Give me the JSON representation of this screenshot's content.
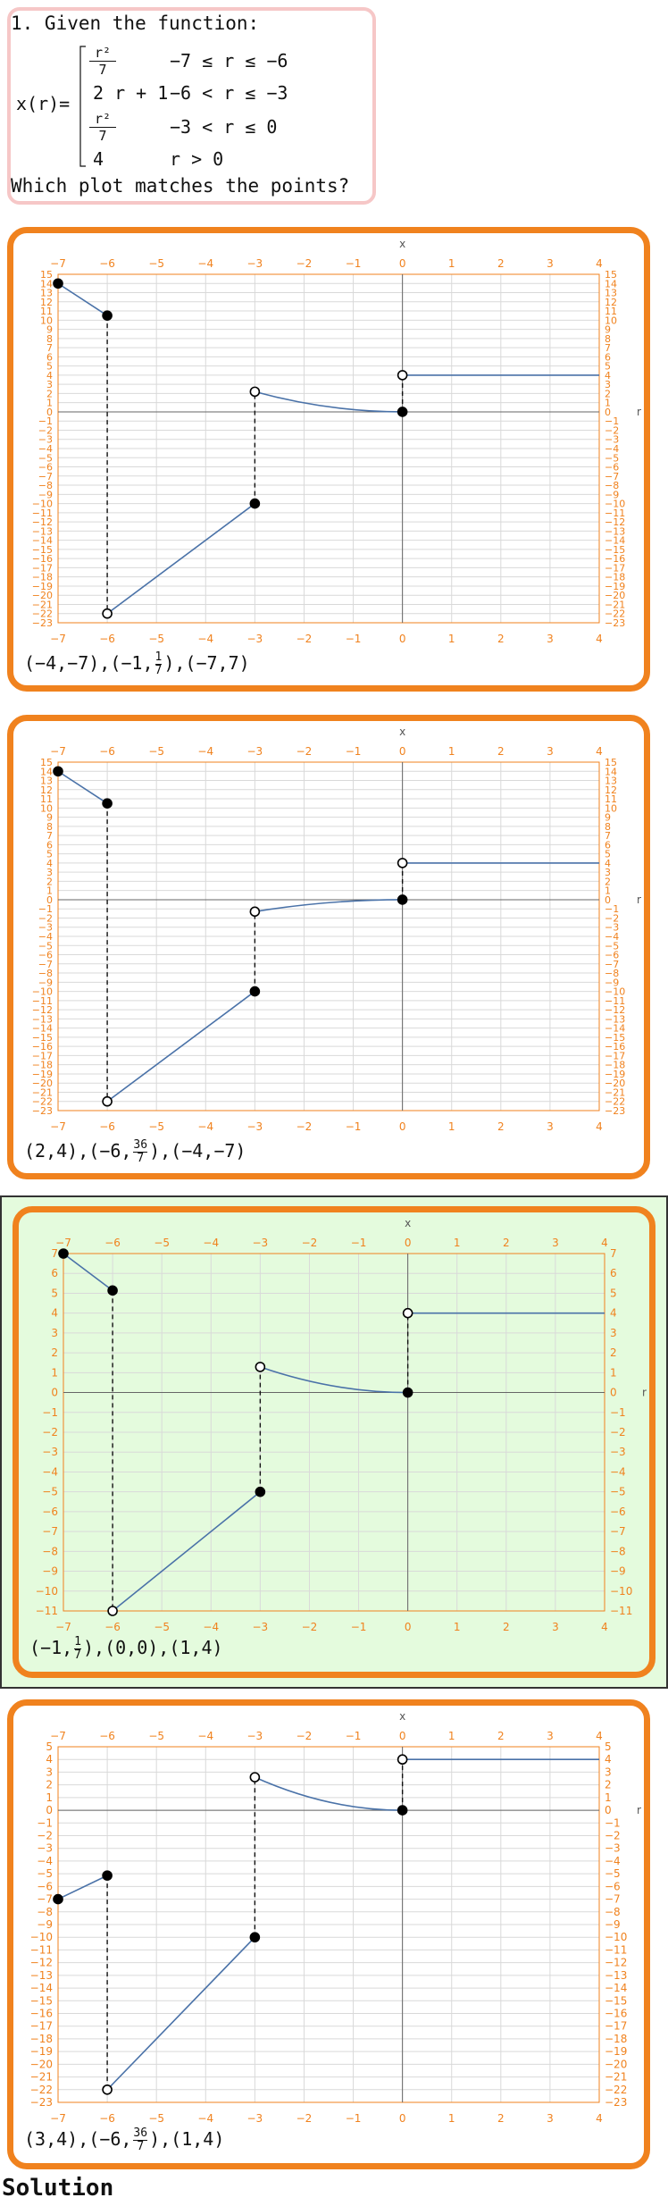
{
  "question": {
    "title": "1. Given the function:",
    "function_name": "x(r)=",
    "pieces": [
      {
        "expr_num": "r²",
        "expr_den": "7",
        "cond": "−7 ≤ r ≤ −6"
      },
      {
        "expr": "2 r + 1",
        "cond": "−6 < r ≤ −3"
      },
      {
        "expr_num": "r²",
        "expr_den": "7",
        "cond": "−3 < r ≤ 0"
      },
      {
        "expr": "4",
        "cond": "r > 0"
      }
    ],
    "prompt": "Which plot matches the points?"
  },
  "axis_labels": {
    "x": "x",
    "y": "r"
  },
  "options": [
    {
      "answer_parts": [
        "(−4,−7),(−1,",
        "1",
        "7",
        "),(−7,7)"
      ],
      "selected": false
    },
    {
      "answer_parts": [
        "(2,4),(−6,",
        "36",
        "7",
        "),(−4,−7)"
      ],
      "selected": false
    },
    {
      "answer_parts": [
        "(−1,",
        "1",
        "7",
        "),(0,0),(1,4)"
      ],
      "selected": true
    },
    {
      "answer_parts": [
        "(3,4),(−6,",
        "36",
        "7",
        "),(1,4)"
      ],
      "selected": false
    }
  ],
  "colors": {
    "accent": "#f0821e",
    "curve": "#4a72a8",
    "selected_bg": "#e4fbdd",
    "question_border": "#f6c7c7"
  },
  "chart_data": [
    {
      "type": "line",
      "xlim": [
        -7,
        4
      ],
      "ylim": [
        -23,
        15
      ],
      "x_ticks": [
        -7,
        -6,
        -5,
        -4,
        -3,
        -2,
        -1,
        0,
        1,
        2,
        3,
        4
      ],
      "y_ticks": [
        15,
        14,
        13,
        12,
        11,
        10,
        9,
        8,
        7,
        6,
        5,
        4,
        3,
        2,
        1,
        0,
        -1,
        -2,
        -3,
        -4,
        -5,
        -6,
        -7,
        -8,
        -9,
        -10,
        -11,
        -12,
        -13,
        -14,
        -15,
        -16,
        -17,
        -18,
        -19,
        -20,
        -21,
        -22,
        -23
      ],
      "segments": [
        {
          "kind": "line",
          "points": [
            [
              -7,
              14
            ],
            [
              -6,
              10.5
            ]
          ]
        },
        {
          "kind": "line",
          "points": [
            [
              -6,
              -22
            ],
            [
              -3,
              -10
            ]
          ]
        },
        {
          "kind": "curve_quad",
          "from": [
            -3,
            2.2
          ],
          "to": [
            0,
            0
          ]
        },
        {
          "kind": "line",
          "points": [
            [
              0,
              4
            ],
            [
              4,
              4
            ]
          ]
        }
      ],
      "points": [
        {
          "x": -7,
          "y": 14,
          "filled": true
        },
        {
          "x": -6,
          "y": 10.5,
          "filled": true
        },
        {
          "x": -6,
          "y": -22,
          "filled": false
        },
        {
          "x": -3,
          "y": -10,
          "filled": true
        },
        {
          "x": -3,
          "y": 2.2,
          "filled": false
        },
        {
          "x": 0,
          "y": 0,
          "filled": true
        },
        {
          "x": 0,
          "y": 4,
          "filled": false
        }
      ],
      "dashed": [
        [
          -6,
          10.5,
          -22
        ],
        [
          -3,
          -10,
          2.2
        ],
        [
          0,
          0,
          4
        ]
      ]
    },
    {
      "type": "line",
      "xlim": [
        -7,
        4
      ],
      "ylim": [
        -23,
        15
      ],
      "x_ticks": [
        -7,
        -6,
        -5,
        -4,
        -3,
        -2,
        -1,
        0,
        1,
        2,
        3,
        4
      ],
      "y_ticks": [
        15,
        14,
        13,
        12,
        11,
        10,
        9,
        8,
        7,
        6,
        5,
        4,
        3,
        2,
        1,
        0,
        -1,
        -2,
        -3,
        -4,
        -5,
        -6,
        -7,
        -8,
        -9,
        -10,
        -11,
        -12,
        -13,
        -14,
        -15,
        -16,
        -17,
        -18,
        -19,
        -20,
        -21,
        -22,
        -23
      ],
      "segments": [
        {
          "kind": "line",
          "points": [
            [
              -7,
              14
            ],
            [
              -6,
              10.5
            ]
          ]
        },
        {
          "kind": "line",
          "points": [
            [
              -6,
              -22
            ],
            [
              -3,
              -10
            ]
          ]
        },
        {
          "kind": "curve_quad",
          "from": [
            -3,
            -1.3
          ],
          "to": [
            0,
            0
          ]
        },
        {
          "kind": "line",
          "points": [
            [
              0,
              4
            ],
            [
              4,
              4
            ]
          ]
        }
      ],
      "points": [
        {
          "x": -7,
          "y": 14,
          "filled": true
        },
        {
          "x": -6,
          "y": 10.5,
          "filled": true
        },
        {
          "x": -6,
          "y": -22,
          "filled": false
        },
        {
          "x": -3,
          "y": -10,
          "filled": true
        },
        {
          "x": -3,
          "y": -1.3,
          "filled": false
        },
        {
          "x": 0,
          "y": 0,
          "filled": true
        },
        {
          "x": 0,
          "y": 4,
          "filled": false
        }
      ],
      "dashed": [
        [
          -6,
          10.5,
          -22
        ],
        [
          -3,
          -10,
          -1.3
        ],
        [
          0,
          0,
          4
        ]
      ]
    },
    {
      "type": "line",
      "xlim": [
        -7,
        4
      ],
      "ylim": [
        -12,
        8
      ],
      "x_ticks": [
        -7,
        -6,
        -5,
        -4,
        -3,
        -2,
        -1,
        0,
        1,
        2,
        3,
        4
      ],
      "y_ticks": [
        7,
        6,
        5,
        4,
        3,
        2,
        1,
        0,
        -1,
        -2,
        -3,
        -4,
        -5,
        -6,
        -7,
        -8,
        -9,
        -10,
        -11
      ],
      "segments": [
        {
          "kind": "line",
          "points": [
            [
              -7,
              7
            ],
            [
              -6,
              5.14
            ]
          ]
        },
        {
          "kind": "line",
          "points": [
            [
              -6,
              -11
            ],
            [
              -3,
              -5
            ]
          ]
        },
        {
          "kind": "curve_quad",
          "from": [
            -3,
            1.29
          ],
          "to": [
            0,
            0
          ]
        },
        {
          "kind": "line",
          "points": [
            [
              0,
              4
            ],
            [
              4,
              4
            ]
          ]
        }
      ],
      "points": [
        {
          "x": -7,
          "y": 7,
          "filled": true
        },
        {
          "x": -6,
          "y": 5.14,
          "filled": true
        },
        {
          "x": -6,
          "y": -11,
          "filled": false
        },
        {
          "x": -3,
          "y": -5,
          "filled": true
        },
        {
          "x": -3,
          "y": 1.29,
          "filled": false
        },
        {
          "x": 0,
          "y": 0,
          "filled": true
        },
        {
          "x": 0,
          "y": 4,
          "filled": false
        }
      ],
      "dashed": [
        [
          -6,
          5.14,
          -11
        ],
        [
          -3,
          -5,
          1.29
        ],
        [
          0,
          0,
          4
        ]
      ]
    },
    {
      "type": "line",
      "xlim": [
        -7,
        4
      ],
      "ylim": [
        -23,
        5
      ],
      "x_ticks": [
        -7,
        -6,
        -5,
        -4,
        -3,
        -2,
        -1,
        0,
        1,
        2,
        3,
        4
      ],
      "y_ticks": [
        5,
        4,
        3,
        2,
        1,
        0,
        -1,
        -2,
        -3,
        -4,
        -5,
        -6,
        -7,
        -8,
        -9,
        -10,
        -11,
        -12,
        -13,
        -14,
        -15,
        -16,
        -17,
        -18,
        -19,
        -20,
        -21,
        -22,
        -23
      ],
      "segments": [
        {
          "kind": "line",
          "points": [
            [
              -7,
              -7
            ],
            [
              -6,
              -5.14
            ]
          ]
        },
        {
          "kind": "line",
          "points": [
            [
              -6,
              -22
            ],
            [
              -3,
              -10
            ]
          ]
        },
        {
          "kind": "curve_quad",
          "from": [
            -3,
            2.6
          ],
          "to": [
            0,
            0
          ]
        },
        {
          "kind": "line",
          "points": [
            [
              0,
              4
            ],
            [
              4,
              4
            ]
          ]
        }
      ],
      "points": [
        {
          "x": -7,
          "y": -7,
          "filled": true
        },
        {
          "x": -6,
          "y": -5.14,
          "filled": true
        },
        {
          "x": -6,
          "y": -22,
          "filled": false
        },
        {
          "x": -3,
          "y": -10,
          "filled": true
        },
        {
          "x": -3,
          "y": 2.6,
          "filled": false
        },
        {
          "x": 0,
          "y": 0,
          "filled": true
        },
        {
          "x": 0,
          "y": 4,
          "filled": false
        }
      ],
      "dashed": [
        [
          -6,
          -5.14,
          -22
        ],
        [
          -3,
          -10,
          2.6
        ],
        [
          0,
          0,
          4
        ]
      ]
    }
  ],
  "solution_label": "Solution"
}
